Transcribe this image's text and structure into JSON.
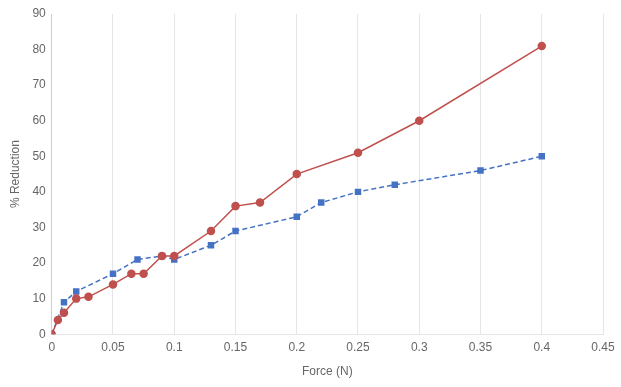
{
  "chart_data": {
    "type": "line",
    "xlabel": "Force (N)",
    "ylabel": "% Reduction",
    "series": [
      {
        "color": "#c0504d",
        "marker": "circle",
        "line_style": "solid",
        "x": [
          0,
          0.005,
          0.01,
          0.02,
          0.03,
          0.05,
          0.065,
          0.075,
          0.09,
          0.1,
          0.13,
          0.15,
          0.17,
          0.2,
          0.25,
          0.3,
          0.4
        ],
        "values": [
          0,
          4,
          6,
          10,
          10.5,
          14,
          17,
          17,
          22,
          22,
          29,
          36,
          37,
          45,
          51,
          60,
          81
        ]
      },
      {
        "color": "#4472c4",
        "marker": "square",
        "line_style": "dashed",
        "x": [
          0,
          0.01,
          0.02,
          0.05,
          0.07,
          0.09,
          0.1,
          0.13,
          0.15,
          0.2,
          0.22,
          0.25,
          0.28,
          0.35,
          0.4
        ],
        "values": [
          0,
          9,
          12,
          17,
          21,
          22,
          21,
          25,
          29,
          33,
          37,
          40,
          42,
          46,
          50
        ]
      }
    ],
    "xlim": [
      0,
      0.45
    ],
    "ylim": [
      0,
      90
    ],
    "xticks": [
      0,
      0.05,
      0.1,
      0.15,
      0.2,
      0.25,
      0.3,
      0.35,
      0.4,
      0.45
    ],
    "yticks": [
      0,
      10,
      20,
      30,
      40,
      50,
      60,
      70,
      80,
      90
    ],
    "grid": "x"
  }
}
